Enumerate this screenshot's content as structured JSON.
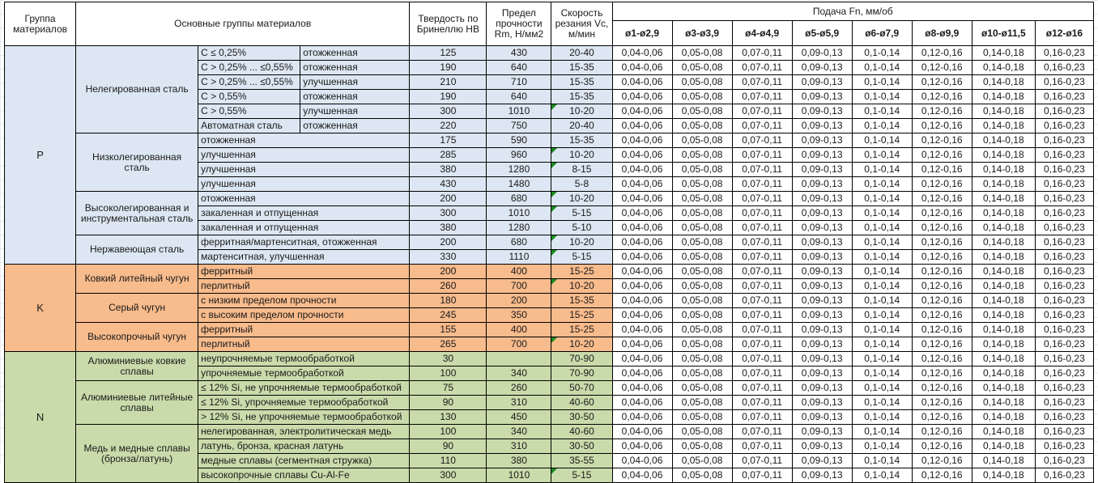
{
  "header": {
    "group": "Группа материалов",
    "main": "Основные группы материалов",
    "hb": "Твердость по Бринеллю HB",
    "rm": "Предел прочности Rm, Н/мм2",
    "vc": "Скорость резания Vc, м/мин",
    "feed": "Подача Fn, мм/об",
    "feed_cols": [
      "ø1-ø2,9",
      "ø3-ø3,9",
      "ø4-ø4,9",
      "ø5-ø5,9",
      "ø6-ø7,9",
      "ø8-ø9,9",
      "ø10-ø11,5",
      "ø12-ø16"
    ]
  },
  "feed_values": [
    "0,04-0,06",
    "0,05-0,08",
    "0,07-0,11",
    "0,09-0,13",
    "0,1-0,14",
    "0,12-0,16",
    "0,14-0,18",
    "0,16-0,23"
  ],
  "colors": {
    "P": "#dde7f3",
    "K": "#f8bb8c",
    "N": "#c9dbab",
    "flag_triangle": "#1a8c1f",
    "border": "#000000"
  },
  "groups": [
    {
      "code": "P",
      "color": "#dde7f3",
      "subgroups": [
        {
          "name": "Нелегированная сталь",
          "rows": [
            {
              "spec": "C ≤ 0,25%",
              "state": "отожженная",
              "hb": "125",
              "rm": "430",
              "vc": "20-40",
              "flag": false
            },
            {
              "spec": "C > 0,25% ... ≤0,55%",
              "state": "отожженная",
              "hb": "190",
              "rm": "640",
              "vc": "15-35",
              "flag": false
            },
            {
              "spec": "C > 0,25% ... ≤0,55%",
              "state": "улучшенная",
              "hb": "210",
              "rm": "710",
              "vc": "15-35",
              "flag": false
            },
            {
              "spec": "C > 0,55%",
              "state": "отожженная",
              "hb": "190",
              "rm": "640",
              "vc": "15-35",
              "flag": false
            },
            {
              "spec": "C > 0,55%",
              "state": "улучшенная",
              "hb": "300",
              "rm": "1010",
              "vc": "10-20",
              "flag": true
            },
            {
              "spec": "Автоматная сталь",
              "state": "отожженная",
              "hb": "220",
              "rm": "750",
              "vc": "20-40",
              "flag": false
            }
          ]
        },
        {
          "name": "Низколегированная сталь",
          "rows": [
            {
              "state": "отожженная",
              "hb": "175",
              "rm": "590",
              "vc": "15-35",
              "flag": false
            },
            {
              "state": "улучшенная",
              "hb": "285",
              "rm": "960",
              "vc": "10-20",
              "flag": true
            },
            {
              "state": "улучшенная",
              "hb": "380",
              "rm": "1280",
              "vc": "8-15",
              "flag": true
            },
            {
              "state": "улучшенная",
              "hb": "430",
              "rm": "1480",
              "vc": "5-8",
              "flag": false
            }
          ]
        },
        {
          "name": "Высоколегированная и инструментальная сталь",
          "rows": [
            {
              "state": "отожженная",
              "hb": "200",
              "rm": "680",
              "vc": "10-20",
              "flag": true
            },
            {
              "state": "закаленная и отпущенная",
              "hb": "300",
              "rm": "1010",
              "vc": "5-15",
              "flag": true
            },
            {
              "state": "закаленная и отпущенная",
              "hb": "380",
              "rm": "1280",
              "vc": "5-10",
              "flag": false
            }
          ]
        },
        {
          "name": "Нержавеющая сталь",
          "rows": [
            {
              "state": "ферритная/мартенситная, отожженная",
              "hb": "200",
              "rm": "680",
              "vc": "10-20",
              "flag": true
            },
            {
              "state": "мартенситная, улучшенная",
              "hb": "330",
              "rm": "1110",
              "vc": "5-15",
              "flag": true
            }
          ]
        }
      ]
    },
    {
      "code": "K",
      "color": "#f8bb8c",
      "subgroups": [
        {
          "name": "Ковкий литейный чугун",
          "rows": [
            {
              "state": "ферритный",
              "hb": "200",
              "rm": "400",
              "vc": "15-25",
              "flag": false
            },
            {
              "state": "перлитный",
              "hb": "260",
              "rm": "700",
              "vc": "10-20",
              "flag": true
            }
          ]
        },
        {
          "name": "Серый чугун",
          "rows": [
            {
              "state": "с низким пределом прочности",
              "hb": "180",
              "rm": "200",
              "vc": "15-35",
              "flag": false
            },
            {
              "state": "с высоким пределом прочности",
              "hb": "245",
              "rm": "350",
              "vc": "15-25",
              "flag": false
            }
          ]
        },
        {
          "name": "Высокопрочный чугун",
          "rows": [
            {
              "state": "ферритный",
              "hb": "155",
              "rm": "400",
              "vc": "15-25",
              "flag": false
            },
            {
              "state": "перлитный",
              "hb": "265",
              "rm": "700",
              "vc": "10-20",
              "flag": true
            }
          ]
        }
      ]
    },
    {
      "code": "N",
      "color": "#c9dbab",
      "subgroups": [
        {
          "name": "Алюминиевые ковкие сплавы",
          "rows": [
            {
              "state": "неупрочняемые термообработкой",
              "hb": "30",
              "rm": "",
              "vc": "70-90",
              "flag": false
            },
            {
              "state": "упрочняемые термообработкой",
              "hb": "100",
              "rm": "340",
              "vc": "70-90",
              "flag": false
            }
          ]
        },
        {
          "name": "Алюминиевые литейные сплавы",
          "rows": [
            {
              "state": "≤ 12% Si, не упрочняемые термообработкой",
              "hb": "75",
              "rm": "260",
              "vc": "50-70",
              "flag": false
            },
            {
              "state": "≤ 12% Si, упрочняемые термообработкой",
              "hb": "90",
              "rm": "310",
              "vc": "40-60",
              "flag": false
            },
            {
              "state": "> 12% Si, не упрочняемые термообработкой",
              "hb": "130",
              "rm": "450",
              "vc": "30-50",
              "flag": false
            }
          ]
        },
        {
          "name": "Медь и медные сплавы (бронза/латунь)",
          "rows": [
            {
              "state": "нелегированная, электролитическая медь",
              "hb": "100",
              "rm": "340",
              "vc": "40-60",
              "flag": false
            },
            {
              "state": "латунь, бронза, красная латунь",
              "hb": "90",
              "rm": "310",
              "vc": "30-50",
              "flag": false
            },
            {
              "state": "медные сплавы (сегментная стружка)",
              "hb": "110",
              "rm": "380",
              "vc": "35-55",
              "flag": false
            },
            {
              "state": "высокопрочные сплавы Cu-Al-Fe",
              "hb": "300",
              "rm": "1010",
              "vc": "5-15",
              "flag": true
            }
          ]
        }
      ]
    }
  ]
}
